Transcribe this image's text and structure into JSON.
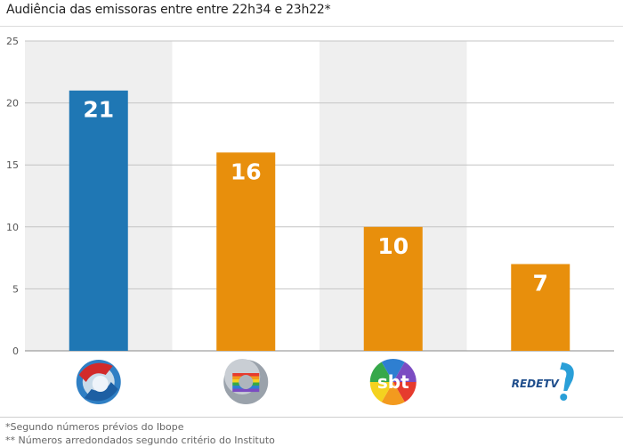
{
  "title": "Audiência das emissoras entre entre 22h34 e 23h22*",
  "chart_data": {
    "type": "bar",
    "categories": [
      "Record",
      "Globo",
      "SBT",
      "RedeTV!"
    ],
    "values": [
      21,
      16,
      10,
      7
    ],
    "data_labels": [
      "21",
      "16",
      "10",
      "7"
    ],
    "ylim": [
      0,
      25
    ],
    "yticks": [
      0,
      5,
      10,
      15,
      20,
      25
    ],
    "ytick_labels": [
      "0",
      "5",
      "10",
      "15",
      "20",
      "25"
    ],
    "xlabel": "",
    "ylabel": "",
    "bar_colors": [
      "#1f77b4",
      "#e88f0c",
      "#e88f0c",
      "#e88f0c"
    ],
    "logo_names": [
      "record-logo",
      "globo-logo",
      "sbt-logo",
      "redetv-logo"
    ],
    "logo_texts": [
      "",
      "",
      "sbt",
      "REDETV"
    ]
  },
  "footnotes": [
    "*Segundo números prévios do Ibope",
    "** Números arredondados segundo critério do Instituto"
  ]
}
